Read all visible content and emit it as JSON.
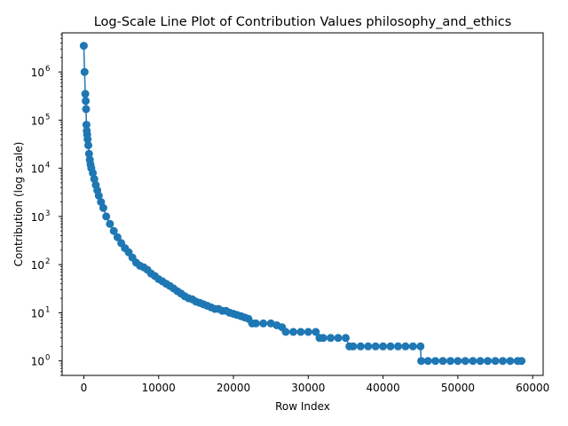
{
  "chart_data": {
    "type": "line",
    "title": "Log-Scale Line Plot of Contribution Values philosophy_and_ethics",
    "xlabel": "Row Index",
    "ylabel": "Contribution (log scale)",
    "x_scale": "linear",
    "y_scale": "log",
    "xlim": [
      -2900,
      61400
    ],
    "ylim": [
      0.5,
      6500000
    ],
    "x_ticks": [
      0,
      10000,
      20000,
      30000,
      40000,
      50000,
      60000
    ],
    "y_ticks": [
      1,
      10,
      100,
      1000,
      10000,
      100000,
      1000000
    ],
    "y_tick_labels": [
      "10^0",
      "10^1",
      "10^2",
      "10^3",
      "10^4",
      "10^5",
      "10^6"
    ],
    "grid": false,
    "color": "#1f77b4",
    "series": [
      {
        "marker": "o",
        "points": [
          [
            0,
            3500000
          ],
          [
            100,
            1000000
          ],
          [
            200,
            350000
          ],
          [
            250,
            250000
          ],
          [
            300,
            170000
          ],
          [
            350,
            80000
          ],
          [
            400,
            60000
          ],
          [
            450,
            50000
          ],
          [
            500,
            40000
          ],
          [
            600,
            30000
          ],
          [
            700,
            20000
          ],
          [
            800,
            15000
          ],
          [
            900,
            12000
          ],
          [
            1000,
            10000
          ],
          [
            1200,
            8000
          ],
          [
            1400,
            6000
          ],
          [
            1600,
            4500
          ],
          [
            1800,
            3500
          ],
          [
            2000,
            2700
          ],
          [
            2300,
            2000
          ],
          [
            2600,
            1500
          ],
          [
            3000,
            1000
          ],
          [
            3500,
            700
          ],
          [
            4000,
            500
          ],
          [
            4500,
            370
          ],
          [
            5000,
            280
          ],
          [
            5500,
            220
          ],
          [
            6000,
            180
          ],
          [
            6500,
            140
          ],
          [
            7000,
            110
          ],
          [
            7500,
            95
          ],
          [
            8000,
            88
          ],
          [
            8500,
            78
          ],
          [
            9000,
            65
          ],
          [
            9500,
            58
          ],
          [
            10000,
            50
          ],
          [
            10500,
            45
          ],
          [
            11000,
            40
          ],
          [
            11500,
            36
          ],
          [
            12000,
            32
          ],
          [
            12500,
            28
          ],
          [
            13000,
            25
          ],
          [
            13500,
            22
          ],
          [
            14000,
            20
          ],
          [
            14500,
            19
          ],
          [
            15000,
            17
          ],
          [
            15500,
            16
          ],
          [
            16000,
            15
          ],
          [
            16500,
            14
          ],
          [
            17000,
            13
          ],
          [
            17500,
            12
          ],
          [
            18000,
            12
          ],
          [
            18500,
            11
          ],
          [
            19000,
            11
          ],
          [
            19500,
            10
          ],
          [
            20000,
            9.5
          ],
          [
            20500,
            9
          ],
          [
            21000,
            8.5
          ],
          [
            21500,
            8
          ],
          [
            22000,
            7.5
          ],
          [
            22500,
            6
          ],
          [
            23000,
            6
          ],
          [
            24000,
            6
          ],
          [
            25000,
            6
          ],
          [
            25800,
            5.5
          ],
          [
            26500,
            5
          ],
          [
            27000,
            4
          ],
          [
            28000,
            4
          ],
          [
            29000,
            4
          ],
          [
            30000,
            4
          ],
          [
            31000,
            4
          ],
          [
            31500,
            3
          ],
          [
            32000,
            3
          ],
          [
            33000,
            3
          ],
          [
            34000,
            3
          ],
          [
            35000,
            3
          ],
          [
            35500,
            2
          ],
          [
            36000,
            2
          ],
          [
            37000,
            2
          ],
          [
            38000,
            2
          ],
          [
            39000,
            2
          ],
          [
            40000,
            2
          ],
          [
            41000,
            2
          ],
          [
            42000,
            2
          ],
          [
            43000,
            2
          ],
          [
            44000,
            2
          ],
          [
            45000,
            2
          ],
          [
            45100,
            1
          ],
          [
            46000,
            1
          ],
          [
            47000,
            1
          ],
          [
            48000,
            1
          ],
          [
            49000,
            1
          ],
          [
            50000,
            1
          ],
          [
            51000,
            1
          ],
          [
            52000,
            1
          ],
          [
            53000,
            1
          ],
          [
            54000,
            1
          ],
          [
            55000,
            1
          ],
          [
            56000,
            1
          ],
          [
            57000,
            1
          ],
          [
            58000,
            1
          ],
          [
            58500,
            1
          ]
        ]
      }
    ]
  }
}
